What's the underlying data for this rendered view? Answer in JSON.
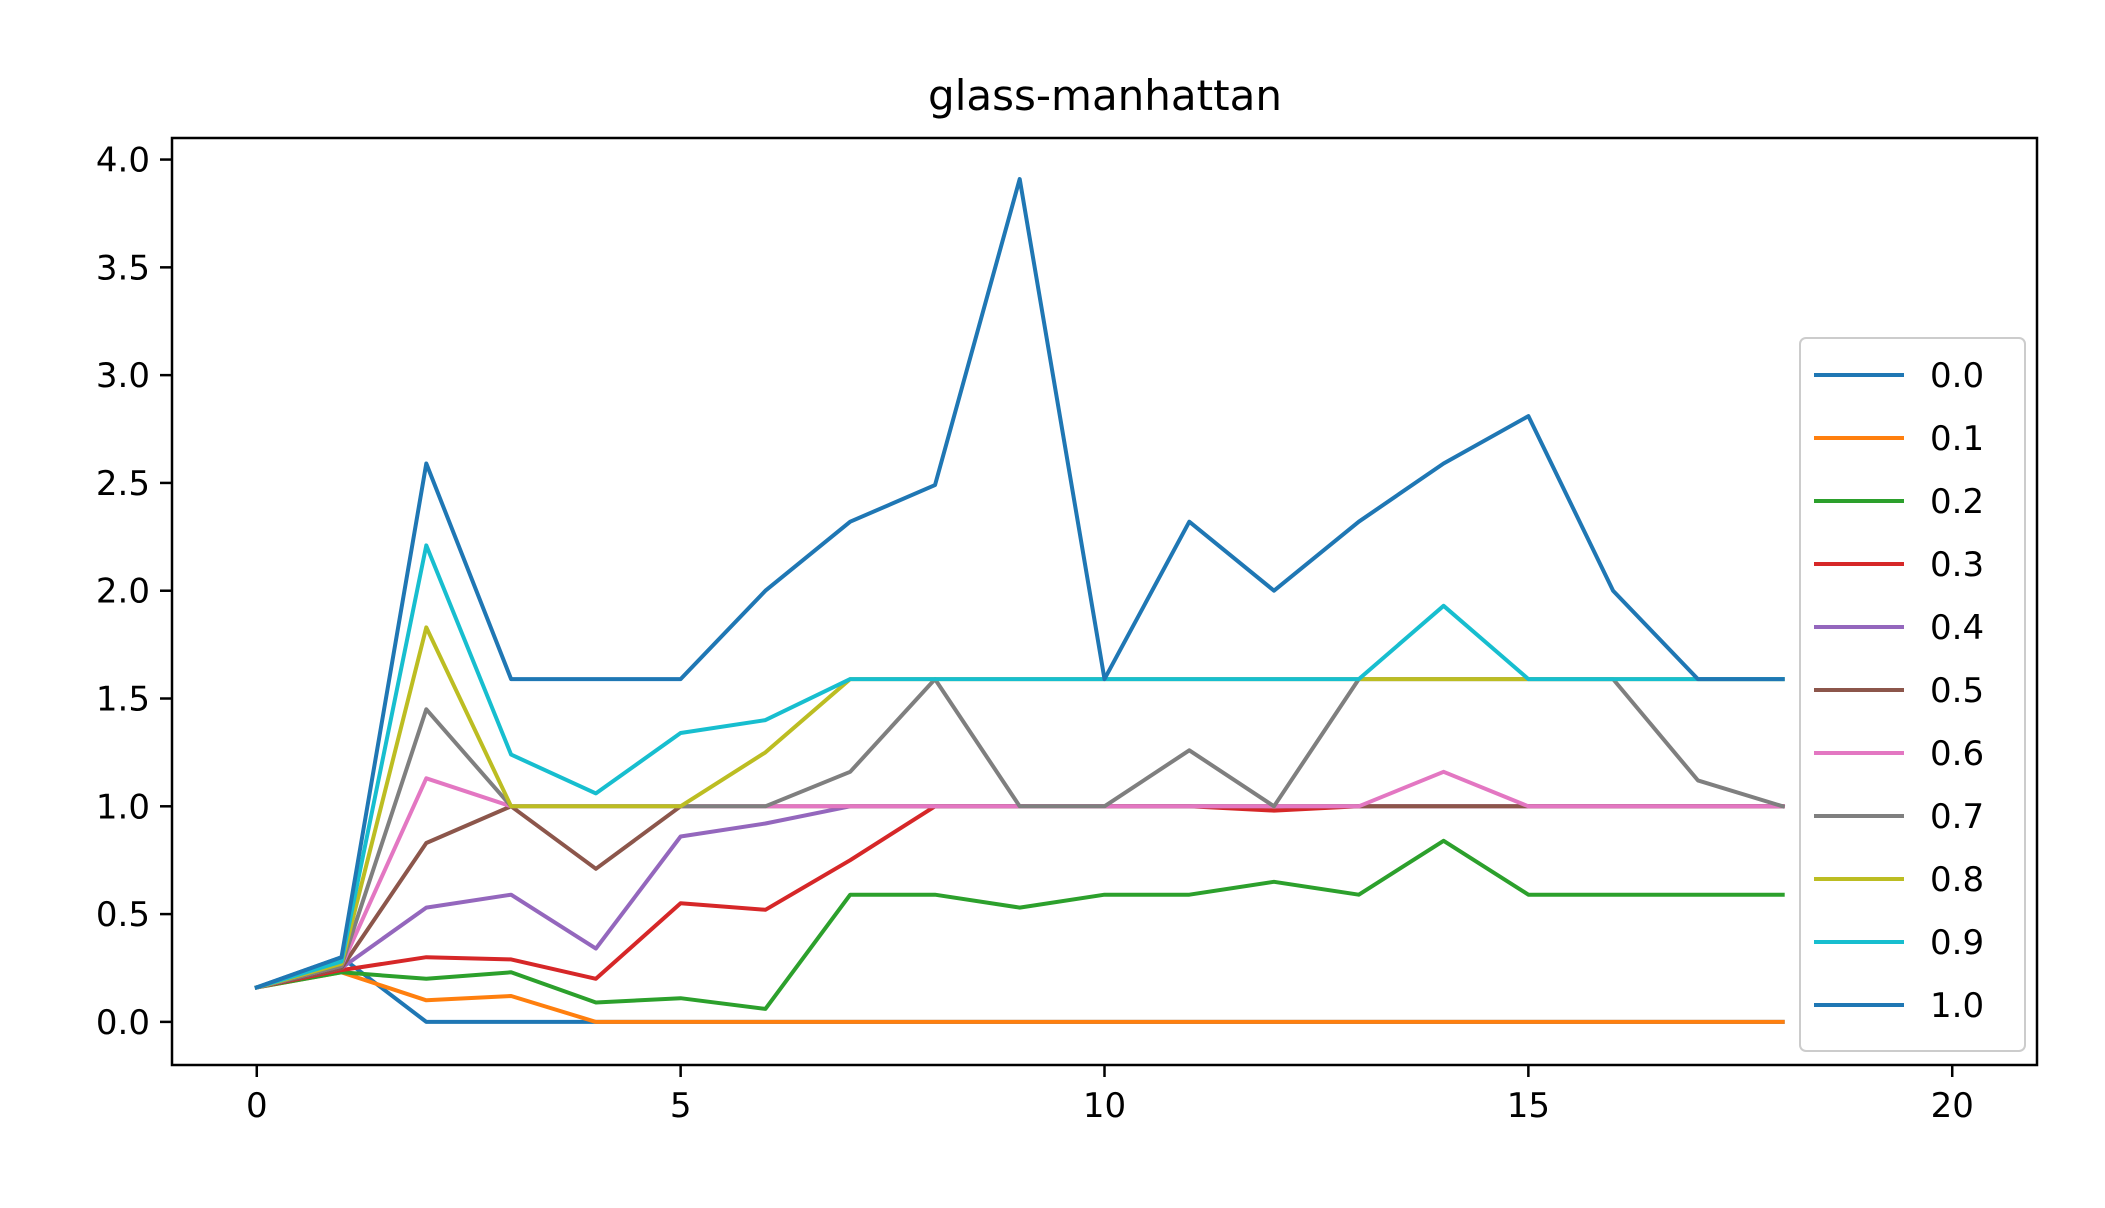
{
  "chart_data": {
    "type": "line",
    "title": "glass-manhattan",
    "xlabel": "",
    "ylabel": "",
    "xlim": [
      -1,
      21
    ],
    "ylim": [
      -0.2,
      4.1
    ],
    "xticks": [
      0,
      5,
      10,
      15,
      20
    ],
    "xtick_labels": [
      "0",
      "5",
      "10",
      "15",
      "20"
    ],
    "yticks": [
      0.0,
      0.5,
      1.0,
      1.5,
      2.0,
      2.5,
      3.0,
      3.5,
      4.0
    ],
    "ytick_labels": [
      "0.0",
      "0.5",
      "1.0",
      "1.5",
      "2.0",
      "2.5",
      "3.0",
      "3.5",
      "4.0"
    ],
    "grid": false,
    "legend_position": "right",
    "x": [
      0,
      1,
      2,
      3,
      4,
      5,
      6,
      7,
      8,
      9,
      10,
      11,
      12,
      13,
      14,
      15,
      16,
      17,
      18
    ],
    "series": [
      {
        "name": "0.0",
        "color": "#1f77b4",
        "values": [
          0.16,
          0.3,
          0.0,
          0.0,
          0.0,
          0.0,
          0.0,
          0.0,
          0.0,
          0.0,
          0.0,
          0.0,
          0.0,
          0.0,
          0.0,
          0.0,
          0.0,
          0.0,
          0.0
        ]
      },
      {
        "name": "0.1",
        "color": "#ff7f0e",
        "values": [
          0.16,
          0.23,
          0.1,
          0.12,
          0.0,
          0.0,
          0.0,
          0.0,
          0.0,
          0.0,
          0.0,
          0.0,
          0.0,
          0.0,
          0.0,
          0.0,
          0.0,
          0.0,
          0.0
        ]
      },
      {
        "name": "0.2",
        "color": "#2ca02c",
        "values": [
          0.16,
          0.23,
          0.2,
          0.23,
          0.09,
          0.11,
          0.06,
          0.59,
          0.59,
          0.53,
          0.59,
          0.59,
          0.65,
          0.59,
          0.84,
          0.59,
          0.59,
          0.59,
          0.59
        ]
      },
      {
        "name": "0.3",
        "color": "#d62728",
        "values": [
          0.16,
          0.24,
          0.3,
          0.29,
          0.2,
          0.55,
          0.52,
          0.75,
          1.0,
          1.0,
          1.0,
          1.0,
          0.98,
          1.0,
          1.0,
          1.0,
          1.0,
          1.0,
          1.0
        ]
      },
      {
        "name": "0.4",
        "color": "#9467bd",
        "values": [
          0.16,
          0.25,
          0.53,
          0.59,
          0.34,
          0.86,
          0.92,
          1.0,
          1.0,
          1.0,
          1.0,
          1.0,
          1.0,
          1.0,
          1.0,
          1.0,
          1.0,
          1.0,
          1.0
        ]
      },
      {
        "name": "0.5",
        "color": "#8c564b",
        "values": [
          0.16,
          0.25,
          0.83,
          1.0,
          0.71,
          1.0,
          1.0,
          1.0,
          1.0,
          1.0,
          1.0,
          1.0,
          1.0,
          1.0,
          1.0,
          1.0,
          1.0,
          1.0,
          1.0
        ]
      },
      {
        "name": "0.6",
        "color": "#e377c2",
        "values": [
          0.16,
          0.26,
          1.13,
          1.0,
          1.0,
          1.0,
          1.0,
          1.0,
          1.0,
          1.0,
          1.0,
          1.0,
          1.0,
          1.0,
          1.16,
          1.0,
          1.0,
          1.0,
          1.0
        ]
      },
      {
        "name": "0.7",
        "color": "#7f7f7f",
        "values": [
          0.16,
          0.26,
          1.45,
          1.0,
          1.0,
          1.0,
          1.0,
          1.16,
          1.59,
          1.0,
          1.0,
          1.26,
          1.0,
          1.59,
          1.59,
          1.59,
          1.59,
          1.12,
          1.0
        ]
      },
      {
        "name": "0.8",
        "color": "#bcbd22",
        "values": [
          0.16,
          0.27,
          1.83,
          1.0,
          1.0,
          1.0,
          1.25,
          1.59,
          1.59,
          1.59,
          1.59,
          1.59,
          1.59,
          1.59,
          1.59,
          1.59,
          1.59,
          1.59,
          1.59
        ]
      },
      {
        "name": "0.9",
        "color": "#17becf",
        "values": [
          0.16,
          0.28,
          2.21,
          1.24,
          1.06,
          1.34,
          1.4,
          1.59,
          1.59,
          1.59,
          1.59,
          1.59,
          1.59,
          1.59,
          1.93,
          1.59,
          1.59,
          1.59,
          1.59
        ]
      },
      {
        "name": "1.0",
        "color": "#1f77b4",
        "values": [
          0.16,
          0.3,
          2.59,
          1.59,
          1.59,
          1.59,
          2.0,
          2.32,
          2.49,
          3.91,
          1.59,
          2.32,
          2.0,
          2.32,
          2.59,
          2.81,
          2.0,
          1.59,
          1.59
        ]
      }
    ]
  }
}
